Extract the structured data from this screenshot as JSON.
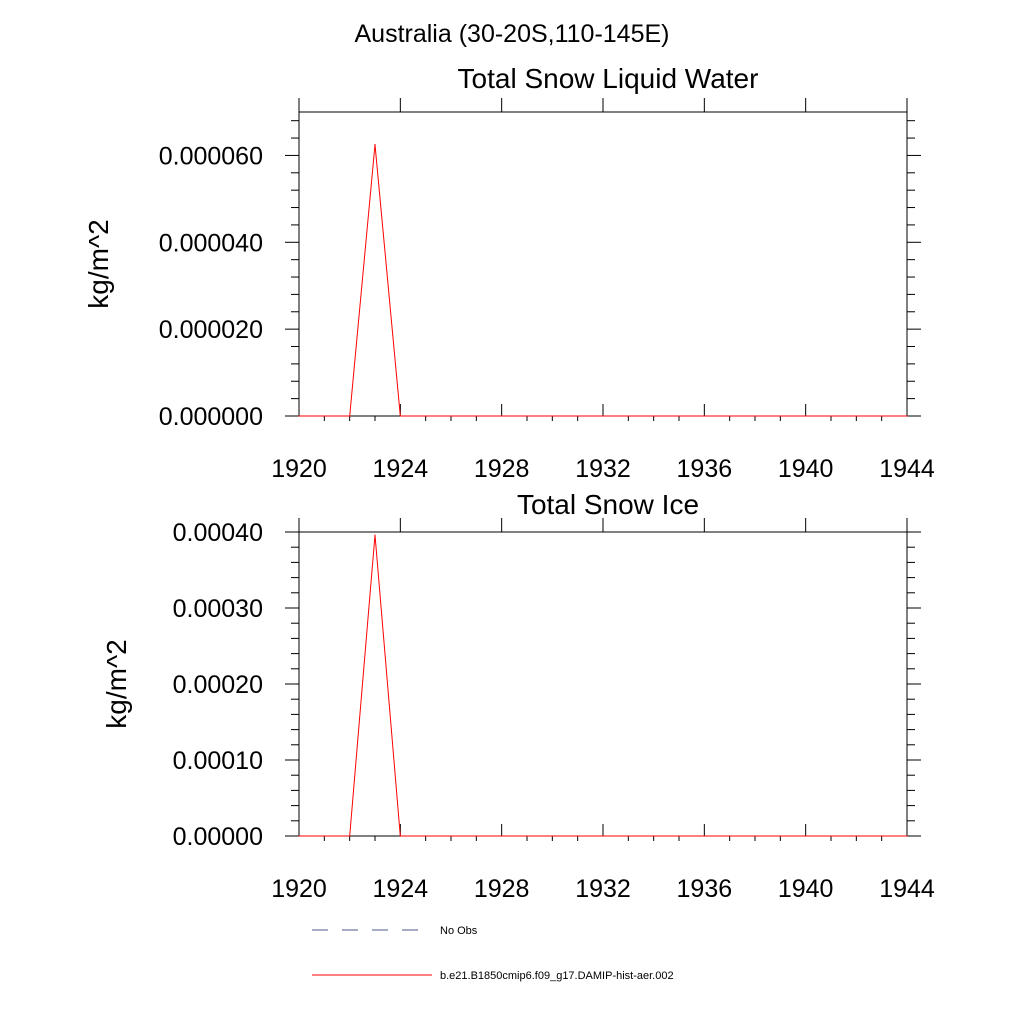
{
  "figure": {
    "title": "Australia (30-20S,110-145E)"
  },
  "chart_data": [
    {
      "type": "line",
      "title": "Total Snow Liquid Water",
      "xlabel": "",
      "ylabel": "kg/m^2",
      "xlim": [
        1920,
        1944
      ],
      "ylim": [
        0,
        7e-05
      ],
      "xticks": [
        1920,
        1924,
        1928,
        1932,
        1936,
        1940,
        1944
      ],
      "xtick_labels": [
        "1920",
        "1924",
        "1928",
        "1932",
        "1936",
        "1940",
        "1944"
      ],
      "yticks": [
        0,
        2e-05,
        4e-05,
        6e-05
      ],
      "ytick_labels": [
        "0.000000",
        "0.000020",
        "0.000040",
        "0.000060"
      ],
      "grid": false,
      "series": [
        {
          "name": "b.e21.B1850cmip6.f09_g17.DAMIP-hist-aer.002",
          "color": "#ff0000",
          "x": [
            1920,
            1921,
            1922,
            1923,
            1924,
            1925,
            1926,
            1927,
            1928,
            1929,
            1930,
            1931,
            1932,
            1933,
            1934,
            1935,
            1936,
            1937,
            1938,
            1939,
            1940,
            1941,
            1942,
            1943,
            1944
          ],
          "y": [
            0,
            0,
            0,
            6.25e-05,
            0,
            0,
            0,
            0,
            0,
            0,
            0,
            0,
            0,
            0,
            0,
            0,
            0,
            0,
            0,
            0,
            0,
            0,
            0,
            0,
            0
          ]
        }
      ]
    },
    {
      "type": "line",
      "title": "Total Snow Ice",
      "xlabel": "",
      "ylabel": "kg/m^2",
      "xlim": [
        1920,
        1944
      ],
      "ylim": [
        0,
        0.0004
      ],
      "xticks": [
        1920,
        1924,
        1928,
        1932,
        1936,
        1940,
        1944
      ],
      "xtick_labels": [
        "1920",
        "1924",
        "1928",
        "1932",
        "1936",
        "1940",
        "1944"
      ],
      "yticks": [
        0,
        0.0001,
        0.0002,
        0.0003,
        0.0004
      ],
      "ytick_labels": [
        "0.00000",
        "0.00010",
        "0.00020",
        "0.00030",
        "0.00040"
      ],
      "grid": false,
      "series": [
        {
          "name": "b.e21.B1850cmip6.f09_g17.DAMIP-hist-aer.002",
          "color": "#ff0000",
          "x": [
            1920,
            1921,
            1922,
            1923,
            1924,
            1925,
            1926,
            1927,
            1928,
            1929,
            1930,
            1931,
            1932,
            1933,
            1934,
            1935,
            1936,
            1937,
            1938,
            1939,
            1940,
            1941,
            1942,
            1943,
            1944
          ],
          "y": [
            0,
            0,
            0,
            0.000396,
            0,
            0,
            0,
            0,
            0,
            0,
            0,
            0,
            0,
            0,
            0,
            0,
            0,
            0,
            0,
            0,
            0,
            0,
            0,
            0,
            0
          ]
        }
      ]
    }
  ],
  "legend": {
    "items": [
      {
        "label": "No Obs",
        "style": "dashed",
        "color": "#4a5a8c"
      },
      {
        "label": "b.e21.B1850cmip6.f09_g17.DAMIP-hist-aer.002",
        "style": "solid",
        "color": "#ff0000"
      }
    ]
  }
}
